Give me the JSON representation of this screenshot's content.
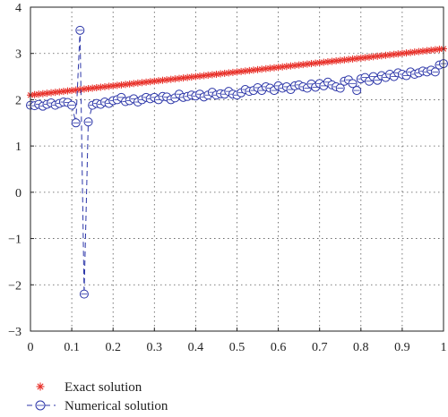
{
  "chart_data": {
    "type": "line",
    "title": "",
    "xlabel": "",
    "ylabel": "",
    "xlim": [
      0,
      1
    ],
    "ylim": [
      -3,
      4
    ],
    "xticks": [
      0,
      0.1,
      0.2,
      0.3,
      0.4,
      0.5,
      0.6,
      0.7,
      0.8,
      0.9,
      1
    ],
    "yticks": [
      -3,
      -2,
      -1,
      0,
      1,
      2,
      3,
      4
    ],
    "xtick_labels": [
      "0",
      "0.1",
      "0.2",
      "0.3",
      "0.4",
      "0.5",
      "0.6",
      "0.7",
      "0.8",
      "0.9",
      "1"
    ],
    "ytick_labels": [
      "−3",
      "−2",
      "−1",
      "0",
      "1",
      "2",
      "3",
      "4"
    ],
    "grid": true,
    "legend_position": "bottom-left, below plot",
    "series": [
      {
        "name": "Exact solution",
        "marker": "asterisk",
        "line": "none",
        "color": "#e8312a",
        "x": [
          0,
          0.01,
          0.02,
          0.03,
          0.04,
          0.05,
          0.06,
          0.07,
          0.08,
          0.09,
          0.1,
          0.11,
          0.12,
          0.13,
          0.14,
          0.15,
          0.16,
          0.17,
          0.18,
          0.19,
          0.2,
          0.21,
          0.22,
          0.23,
          0.24,
          0.25,
          0.26,
          0.27,
          0.28,
          0.29,
          0.3,
          0.31,
          0.32,
          0.33,
          0.34,
          0.35,
          0.36,
          0.37,
          0.38,
          0.39,
          0.4,
          0.41,
          0.42,
          0.43,
          0.44,
          0.45,
          0.46,
          0.47,
          0.48,
          0.49,
          0.5,
          0.51,
          0.52,
          0.53,
          0.54,
          0.55,
          0.56,
          0.57,
          0.58,
          0.59,
          0.6,
          0.61,
          0.62,
          0.63,
          0.64,
          0.65,
          0.66,
          0.67,
          0.68,
          0.69,
          0.7,
          0.71,
          0.72,
          0.73,
          0.74,
          0.75,
          0.76,
          0.77,
          0.78,
          0.79,
          0.8,
          0.81,
          0.82,
          0.83,
          0.84,
          0.85,
          0.86,
          0.87,
          0.88,
          0.89,
          0.9,
          0.91,
          0.92,
          0.93,
          0.94,
          0.95,
          0.96,
          0.97,
          0.98,
          0.99,
          1
        ],
        "y": [
          2.1,
          2.11,
          2.12,
          2.13,
          2.14,
          2.15,
          2.16,
          2.17,
          2.18,
          2.19,
          2.2,
          2.21,
          2.22,
          2.23,
          2.24,
          2.25,
          2.26,
          2.27,
          2.28,
          2.29,
          2.3,
          2.31,
          2.32,
          2.33,
          2.34,
          2.35,
          2.36,
          2.37,
          2.38,
          2.39,
          2.4,
          2.41,
          2.42,
          2.43,
          2.44,
          2.45,
          2.46,
          2.47,
          2.48,
          2.49,
          2.5,
          2.51,
          2.52,
          2.53,
          2.54,
          2.55,
          2.56,
          2.57,
          2.58,
          2.59,
          2.6,
          2.61,
          2.62,
          2.63,
          2.64,
          2.65,
          2.66,
          2.67,
          2.68,
          2.69,
          2.7,
          2.71,
          2.72,
          2.73,
          2.74,
          2.75,
          2.76,
          2.77,
          2.78,
          2.79,
          2.8,
          2.81,
          2.82,
          2.83,
          2.84,
          2.85,
          2.86,
          2.87,
          2.88,
          2.89,
          2.9,
          2.91,
          2.92,
          2.93,
          2.94,
          2.95,
          2.96,
          2.97,
          2.98,
          2.99,
          3.0,
          3.01,
          3.02,
          3.03,
          3.04,
          3.05,
          3.06,
          3.07,
          3.08,
          3.09,
          3.1
        ]
      },
      {
        "name": "Numerical solution",
        "marker": "circle",
        "line": "dashed",
        "color": "#2b35a8",
        "x": [
          0,
          0.01,
          0.02,
          0.03,
          0.04,
          0.05,
          0.06,
          0.07,
          0.08,
          0.09,
          0.1,
          0.11,
          0.12,
          0.13,
          0.14,
          0.15,
          0.16,
          0.17,
          0.18,
          0.19,
          0.2,
          0.21,
          0.22,
          0.23,
          0.24,
          0.25,
          0.26,
          0.27,
          0.28,
          0.29,
          0.3,
          0.31,
          0.32,
          0.33,
          0.34,
          0.35,
          0.36,
          0.37,
          0.38,
          0.39,
          0.4,
          0.41,
          0.42,
          0.43,
          0.44,
          0.45,
          0.46,
          0.47,
          0.48,
          0.49,
          0.5,
          0.51,
          0.52,
          0.53,
          0.54,
          0.55,
          0.56,
          0.57,
          0.58,
          0.59,
          0.6,
          0.61,
          0.62,
          0.63,
          0.64,
          0.65,
          0.66,
          0.67,
          0.68,
          0.69,
          0.7,
          0.71,
          0.72,
          0.73,
          0.74,
          0.75,
          0.76,
          0.77,
          0.78,
          0.79,
          0.8,
          0.81,
          0.82,
          0.83,
          0.84,
          0.85,
          0.86,
          0.87,
          0.88,
          0.89,
          0.9,
          0.91,
          0.92,
          0.93,
          0.94,
          0.95,
          0.96,
          0.97,
          0.98,
          0.99,
          1
        ],
        "y": [
          1.88,
          1.87,
          1.9,
          1.86,
          1.9,
          1.93,
          1.88,
          1.92,
          1.95,
          1.94,
          1.88,
          1.5,
          3.5,
          -2.2,
          1.52,
          1.88,
          1.92,
          1.9,
          1.95,
          1.92,
          1.98,
          2.0,
          2.05,
          1.96,
          1.98,
          2.02,
          1.95,
          2.0,
          2.05,
          2.02,
          2.05,
          2.0,
          2.07,
          2.06,
          2.0,
          2.04,
          2.12,
          2.05,
          2.07,
          2.1,
          2.08,
          2.12,
          2.06,
          2.1,
          2.16,
          2.1,
          2.13,
          2.12,
          2.18,
          2.12,
          2.1,
          2.15,
          2.22,
          2.18,
          2.2,
          2.26,
          2.2,
          2.28,
          2.25,
          2.2,
          2.3,
          2.25,
          2.28,
          2.22,
          2.3,
          2.32,
          2.28,
          2.25,
          2.34,
          2.27,
          2.35,
          2.3,
          2.38,
          2.32,
          2.28,
          2.25,
          2.4,
          2.43,
          2.35,
          2.2,
          2.45,
          2.48,
          2.4,
          2.5,
          2.42,
          2.52,
          2.48,
          2.55,
          2.5,
          2.58,
          2.55,
          2.52,
          2.6,
          2.55,
          2.58,
          2.62,
          2.6,
          2.64,
          2.6,
          2.75,
          2.78
        ]
      }
    ]
  }
}
